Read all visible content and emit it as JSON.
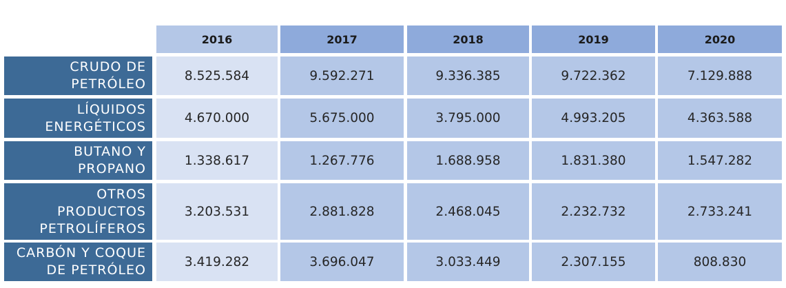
{
  "chart_data": {
    "type": "table",
    "columns": [
      "2016",
      "2017",
      "2018",
      "2019",
      "2020"
    ],
    "rows": [
      {
        "label": "CRUDO DE PETRÓLEO",
        "label_lines": [
          "CRUDO DE",
          "PETRÓLEO"
        ],
        "values": [
          "8.525.584",
          "9.592.271",
          "9.336.385",
          "9.722.362",
          "7.129.888"
        ]
      },
      {
        "label": "LÍQUIDOS ENERGÉTICOS",
        "label_lines": [
          "LÍQUIDOS",
          "ENERGÉTICOS"
        ],
        "values": [
          "4.670.000",
          "5.675.000",
          "3.795.000",
          "4.993.205",
          "4.363.588"
        ]
      },
      {
        "label": "BUTANO Y PROPANO",
        "label_lines": [
          "BUTANO Y",
          "PROPANO"
        ],
        "values": [
          "1.338.617",
          "1.267.776",
          "1.688.958",
          "1.831.380",
          "1.547.282"
        ]
      },
      {
        "label": "OTROS PRODUCTOS PETROLÍFEROS",
        "label_lines": [
          "OTROS",
          "PRODUCTOS",
          "PETROLÍFEROS"
        ],
        "values": [
          "3.203.531",
          "2.881.828",
          "2.468.045",
          "2.232.732",
          "2.733.241"
        ]
      },
      {
        "label": "CARBÓN Y COQUE DE PETRÓLEO",
        "label_lines": [
          "CARBÓN Y COQUE",
          "DE PETRÓLEO"
        ],
        "values": [
          "3.419.282",
          "3.696.047",
          "3.033.449",
          "2.307.155",
          "808.830"
        ]
      }
    ]
  },
  "colors": {
    "row_label_bg": "#3d6a96",
    "header_first_bg": "#b4c7e7",
    "header_bg": "#8eaadb",
    "cell_first_bg": "#d9e2f3",
    "cell_bg": "#b4c7e7"
  }
}
